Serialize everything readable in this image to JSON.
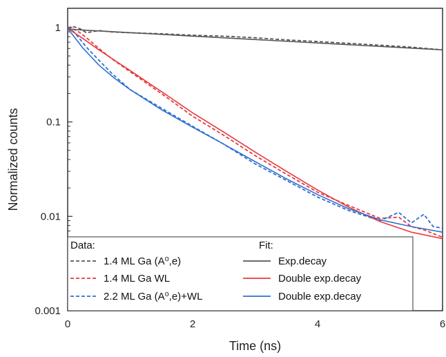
{
  "chart_data": {
    "type": "line",
    "xlabel": "Time (ns)",
    "ylabel": "Normalized counts",
    "xlim": [
      0,
      6
    ],
    "ylim": [
      0.001,
      1.6
    ],
    "yscale": "log",
    "grid": false,
    "legend_placement": "bottom-left",
    "x_ticks": [
      {
        "value": 0,
        "label": "0"
      },
      {
        "value": 2,
        "label": "2"
      },
      {
        "value": 4,
        "label": "4"
      },
      {
        "value": 6,
        "label": "6"
      }
    ],
    "y_ticks": [
      {
        "value": 1,
        "label": "1"
      },
      {
        "value": 0.1,
        "label": "0.1"
      },
      {
        "value": 0.01,
        "label": "0.01"
      },
      {
        "value": 0.001,
        "label": "0.001"
      }
    ],
    "legend": {
      "data_heading": "Data:",
      "fit_heading": "Fit:"
    },
    "series": [
      {
        "name": "1.4 ML Ga (A⁰,e)",
        "role": "data",
        "style": "dashed",
        "color": "#555555",
        "x": [
          0,
          0.1,
          0.2,
          0.3,
          0.5,
          0.7,
          1.0,
          1.5,
          2.0,
          2.5,
          3.0,
          3.5,
          4.0,
          4.5,
          5.0,
          5.5,
          6.0
        ],
        "y": [
          1.0,
          1.02,
          0.97,
          0.88,
          0.93,
          0.9,
          0.88,
          0.86,
          0.83,
          0.81,
          0.78,
          0.74,
          0.71,
          0.68,
          0.65,
          0.62,
          0.58
        ]
      },
      {
        "name": "1.4 ML Ga WL",
        "role": "data",
        "style": "dashed",
        "color": "#e8383b",
        "x": [
          0,
          0.1,
          0.2,
          0.3,
          0.5,
          0.7,
          1.0,
          1.5,
          2.0,
          2.5,
          3.0,
          3.5,
          4.0,
          4.5,
          5.0,
          5.3,
          5.5,
          5.7,
          6.0
        ],
        "y": [
          1.0,
          0.96,
          0.88,
          0.78,
          0.6,
          0.47,
          0.34,
          0.2,
          0.115,
          0.072,
          0.044,
          0.028,
          0.018,
          0.013,
          0.0095,
          0.0098,
          0.0078,
          0.0072,
          0.006
        ]
      },
      {
        "name": "2.2 ML Ga (A⁰,e)+WL",
        "role": "data",
        "style": "dashed",
        "color": "#2e6fd0",
        "x": [
          0,
          0.1,
          0.2,
          0.3,
          0.5,
          0.7,
          1.0,
          1.5,
          2.0,
          2.5,
          3.0,
          3.5,
          4.0,
          4.5,
          5.0,
          5.3,
          5.5,
          5.7,
          5.85,
          6.0
        ],
        "y": [
          1.0,
          0.9,
          0.75,
          0.62,
          0.45,
          0.33,
          0.22,
          0.14,
          0.09,
          0.058,
          0.036,
          0.024,
          0.016,
          0.0115,
          0.009,
          0.011,
          0.0085,
          0.0105,
          0.0078,
          0.0075
        ]
      },
      {
        "name": "Exp.decay",
        "role": "fit",
        "style": "solid",
        "color": "#555555",
        "x": [
          0,
          6
        ],
        "y": [
          0.96,
          0.58
        ]
      },
      {
        "name": "Double exp.decay",
        "role": "fit",
        "style": "solid",
        "color": "#e8383b",
        "x": [
          0,
          0.25,
          0.5,
          0.75,
          1.0,
          1.5,
          2.0,
          2.5,
          3.0,
          3.5,
          4.0,
          4.5,
          5.0,
          5.5,
          6.0
        ],
        "y": [
          0.98,
          0.76,
          0.58,
          0.45,
          0.35,
          0.21,
          0.125,
          0.078,
          0.048,
          0.03,
          0.019,
          0.0125,
          0.0088,
          0.0068,
          0.0058
        ]
      },
      {
        "name": "Double exp.decay",
        "role": "fit",
        "style": "solid",
        "color": "#2e6fd0",
        "x": [
          0,
          0.25,
          0.5,
          0.75,
          1.0,
          1.5,
          2.0,
          2.5,
          3.0,
          3.5,
          4.0,
          4.5,
          5.0,
          5.5,
          6.0
        ],
        "y": [
          0.98,
          0.6,
          0.4,
          0.29,
          0.22,
          0.135,
          0.088,
          0.058,
          0.038,
          0.025,
          0.017,
          0.012,
          0.0092,
          0.0078,
          0.0068
        ]
      }
    ]
  }
}
